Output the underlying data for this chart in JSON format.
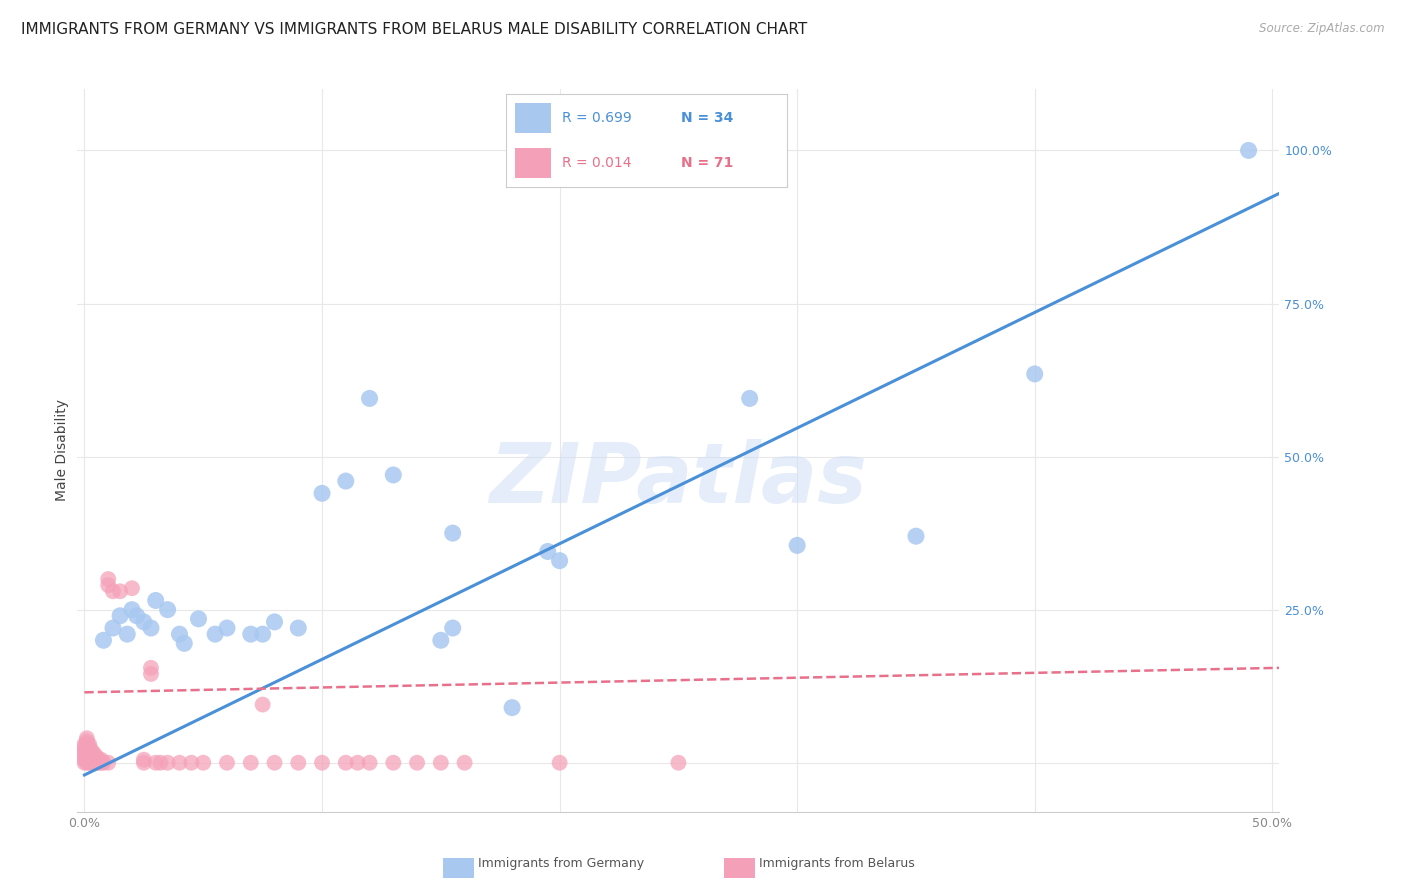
{
  "title": "IMMIGRANTS FROM GERMANY VS IMMIGRANTS FROM BELARUS MALE DISABILITY CORRELATION CHART",
  "source": "Source: ZipAtlas.com",
  "ylabel": "Male Disability",
  "xlim": [
    -0.003,
    0.503
  ],
  "ylim": [
    -0.08,
    1.1
  ],
  "xticks": [
    0.0,
    0.1,
    0.2,
    0.3,
    0.4,
    0.5
  ],
  "xtick_labels": [
    "0.0%",
    "",
    "",
    "",
    "",
    "50.0%"
  ],
  "ytick_positions": [
    0.0,
    0.25,
    0.5,
    0.75,
    1.0
  ],
  "ytick_labels": [
    "",
    "25.0%",
    "50.0%",
    "75.0%",
    "100.0%"
  ],
  "watermark": "ZIPatlas",
  "germany_color": "#a8c8f0",
  "belarus_color": "#f4a0b8",
  "germany_line_color": "#4a90d9",
  "belarus_line_color": "#e8708a",
  "germany_R": 0.699,
  "germany_N": 34,
  "belarus_R": 0.014,
  "belarus_N": 71,
  "germany_line_x0": 0.0,
  "germany_line_y0": -0.02,
  "germany_line_x1": 0.503,
  "germany_line_y1": 0.93,
  "belarus_line_x0": 0.0,
  "belarus_line_y0": 0.115,
  "belarus_line_x1": 0.503,
  "belarus_line_y1": 0.155,
  "germany_points": [
    [
      0.008,
      0.2
    ],
    [
      0.012,
      0.22
    ],
    [
      0.015,
      0.24
    ],
    [
      0.018,
      0.21
    ],
    [
      0.02,
      0.25
    ],
    [
      0.022,
      0.24
    ],
    [
      0.025,
      0.23
    ],
    [
      0.028,
      0.22
    ],
    [
      0.03,
      0.265
    ],
    [
      0.035,
      0.25
    ],
    [
      0.04,
      0.21
    ],
    [
      0.042,
      0.195
    ],
    [
      0.048,
      0.235
    ],
    [
      0.055,
      0.21
    ],
    [
      0.06,
      0.22
    ],
    [
      0.07,
      0.21
    ],
    [
      0.075,
      0.21
    ],
    [
      0.08,
      0.23
    ],
    [
      0.09,
      0.22
    ],
    [
      0.1,
      0.44
    ],
    [
      0.11,
      0.46
    ],
    [
      0.12,
      0.595
    ],
    [
      0.13,
      0.47
    ],
    [
      0.15,
      0.2
    ],
    [
      0.155,
      0.22
    ],
    [
      0.18,
      0.09
    ],
    [
      0.195,
      0.345
    ],
    [
      0.2,
      0.33
    ],
    [
      0.28,
      0.595
    ],
    [
      0.3,
      0.355
    ],
    [
      0.4,
      0.635
    ],
    [
      0.49,
      1.0
    ],
    [
      0.155,
      0.375
    ],
    [
      0.35,
      0.37
    ]
  ],
  "belarus_points": [
    [
      0.0,
      0.0
    ],
    [
      0.0,
      0.005
    ],
    [
      0.0,
      0.01
    ],
    [
      0.0,
      0.015
    ],
    [
      0.0,
      0.02
    ],
    [
      0.0,
      0.025
    ],
    [
      0.0,
      0.03
    ],
    [
      0.001,
      0.0
    ],
    [
      0.001,
      0.005
    ],
    [
      0.001,
      0.01
    ],
    [
      0.001,
      0.015
    ],
    [
      0.001,
      0.02
    ],
    [
      0.001,
      0.025
    ],
    [
      0.001,
      0.03
    ],
    [
      0.001,
      0.035
    ],
    [
      0.001,
      0.04
    ],
    [
      0.002,
      0.0
    ],
    [
      0.002,
      0.005
    ],
    [
      0.002,
      0.01
    ],
    [
      0.002,
      0.015
    ],
    [
      0.002,
      0.02
    ],
    [
      0.002,
      0.025
    ],
    [
      0.002,
      0.03
    ],
    [
      0.003,
      0.0
    ],
    [
      0.003,
      0.005
    ],
    [
      0.003,
      0.01
    ],
    [
      0.003,
      0.015
    ],
    [
      0.003,
      0.02
    ],
    [
      0.004,
      0.0
    ],
    [
      0.004,
      0.005
    ],
    [
      0.004,
      0.01
    ],
    [
      0.004,
      0.015
    ],
    [
      0.005,
      0.0
    ],
    [
      0.005,
      0.005
    ],
    [
      0.005,
      0.01
    ],
    [
      0.006,
      0.0
    ],
    [
      0.006,
      0.005
    ],
    [
      0.007,
      0.0
    ],
    [
      0.007,
      0.005
    ],
    [
      0.008,
      0.0
    ],
    [
      0.01,
      0.0
    ],
    [
      0.01,
      0.29
    ],
    [
      0.01,
      0.3
    ],
    [
      0.012,
      0.28
    ],
    [
      0.015,
      0.28
    ],
    [
      0.02,
      0.285
    ],
    [
      0.025,
      0.0
    ],
    [
      0.025,
      0.005
    ],
    [
      0.028,
      0.145
    ],
    [
      0.028,
      0.155
    ],
    [
      0.03,
      0.0
    ],
    [
      0.032,
      0.0
    ],
    [
      0.035,
      0.0
    ],
    [
      0.04,
      0.0
    ],
    [
      0.045,
      0.0
    ],
    [
      0.05,
      0.0
    ],
    [
      0.06,
      0.0
    ],
    [
      0.07,
      0.0
    ],
    [
      0.075,
      0.095
    ],
    [
      0.08,
      0.0
    ],
    [
      0.09,
      0.0
    ],
    [
      0.1,
      0.0
    ],
    [
      0.11,
      0.0
    ],
    [
      0.115,
      0.0
    ],
    [
      0.12,
      0.0
    ],
    [
      0.13,
      0.0
    ],
    [
      0.14,
      0.0
    ],
    [
      0.15,
      0.0
    ],
    [
      0.16,
      0.0
    ],
    [
      0.2,
      0.0
    ],
    [
      0.25,
      0.0
    ]
  ],
  "background_color": "#ffffff",
  "grid_color": "#e8e8e8",
  "title_fontsize": 11,
  "axis_label_fontsize": 10,
  "tick_fontsize": 9,
  "legend_fontsize": 10
}
